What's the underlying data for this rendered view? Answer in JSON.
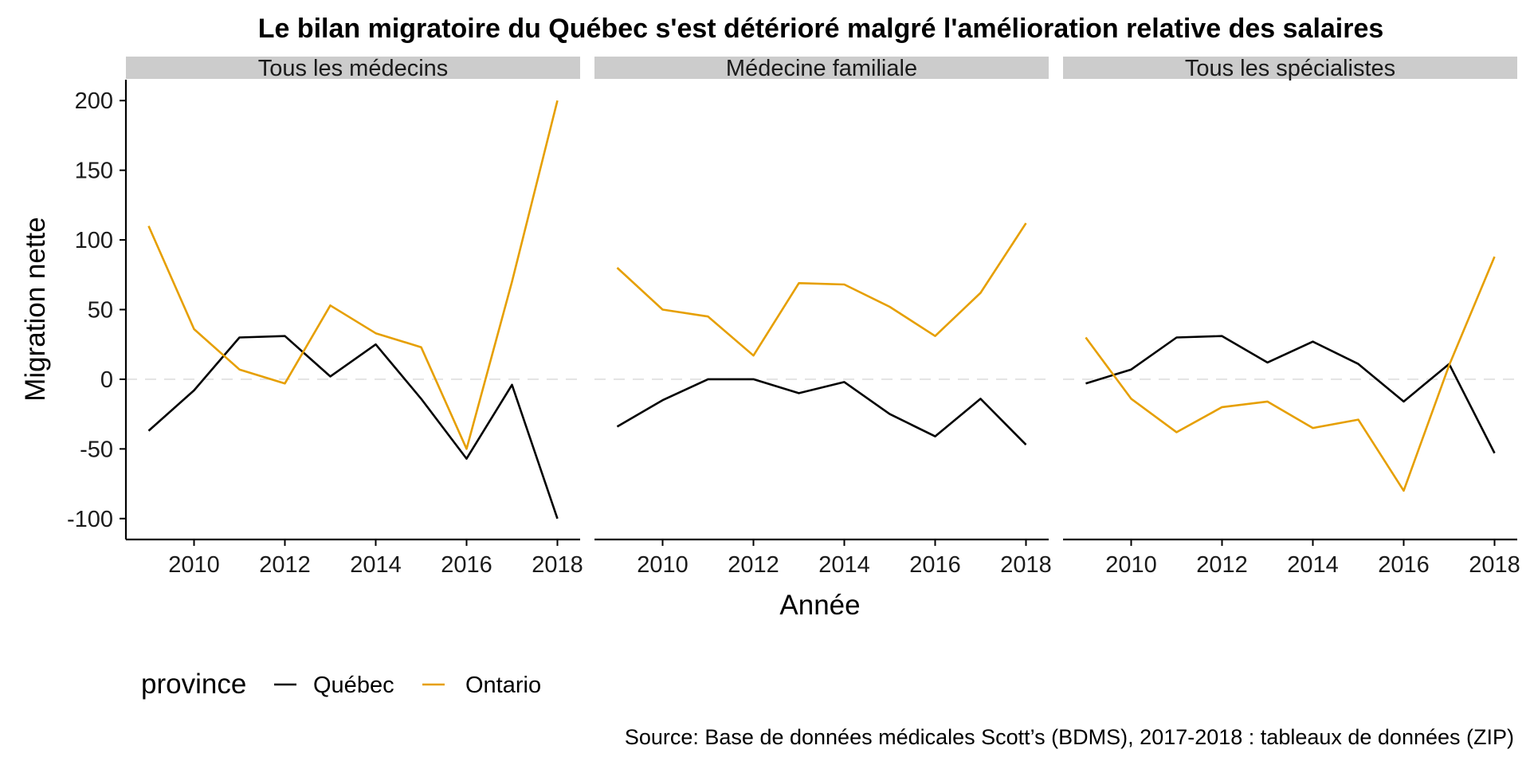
{
  "chart_data": {
    "type": "line",
    "title": "Le bilan migratoire du Québec s'est détérioré malgré l'amélioration relative des salaires",
    "xlabel": "Année",
    "ylabel": "Migration nette",
    "caption": "Source: Base de données médicales Scott’s (BDMS), 2017-2018 : tableaux de données (ZIP)",
    "x": [
      2009,
      2010,
      2011,
      2012,
      2013,
      2014,
      2015,
      2016,
      2017,
      2018
    ],
    "xticks": [
      "2010",
      "2012",
      "2014",
      "2016",
      "2018"
    ],
    "xtick_values": [
      2010,
      2012,
      2014,
      2016,
      2018
    ],
    "yticks": [
      "-100",
      "-50",
      "0",
      "50",
      "100",
      "150",
      "200"
    ],
    "ytick_values": [
      -100,
      -50,
      0,
      50,
      100,
      150,
      200
    ],
    "xlim": [
      2008.5,
      2018.5
    ],
    "ylim": [
      -115,
      215
    ],
    "grid": false,
    "reference_line": {
      "y": 0,
      "style": "dashed",
      "color": "#e3e3e3"
    },
    "legend": {
      "title": "province",
      "position": "bottom-left",
      "entries": [
        "Québec",
        "Ontario"
      ]
    },
    "colors": {
      "Québec": "#000000",
      "Ontario": "#E69F00"
    },
    "facets": [
      {
        "label": "Tous les médecins",
        "series": [
          {
            "name": "Québec",
            "values": [
              -37,
              -8,
              30,
              31,
              2,
              25,
              -14,
              -57,
              -4,
              -100
            ]
          },
          {
            "name": "Ontario",
            "values": [
              110,
              36,
              7,
              -3,
              53,
              33,
              23,
              -50,
              70,
              200
            ]
          }
        ]
      },
      {
        "label": "Médecine familiale",
        "series": [
          {
            "name": "Québec",
            "values": [
              -34,
              -15,
              0,
              0,
              -10,
              -2,
              -25,
              -41,
              -14,
              -47
            ]
          },
          {
            "name": "Ontario",
            "values": [
              80,
              50,
              45,
              17,
              69,
              68,
              52,
              31,
              62,
              112
            ]
          }
        ]
      },
      {
        "label": "Tous les spécialistes",
        "series": [
          {
            "name": "Québec",
            "values": [
              -3,
              7,
              30,
              31,
              12,
              27,
              11,
              -16,
              11,
              -53
            ]
          },
          {
            "name": "Ontario",
            "values": [
              30,
              -14,
              -38,
              -20,
              -16,
              -35,
              -29,
              -80,
              10,
              88
            ]
          }
        ]
      }
    ]
  }
}
